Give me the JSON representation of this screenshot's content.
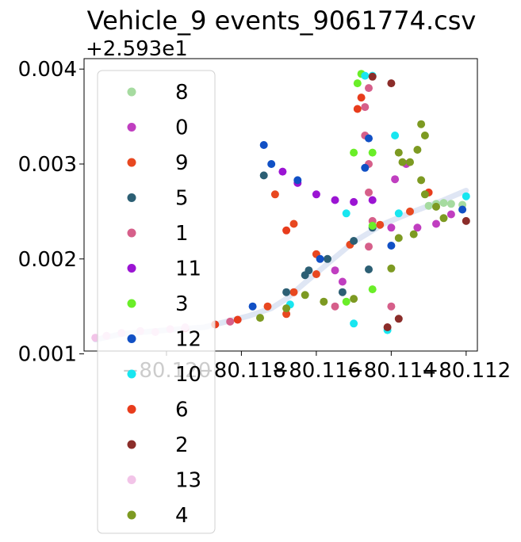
{
  "chart_data": {
    "type": "scatter",
    "title": "Vehicle_9 events_9061774.csv",
    "xlabel": "",
    "ylabel": "",
    "y_offset_text": "+2.593e1",
    "xlim": [
      -80.1222,
      -80.1117
    ],
    "ylim": [
      0.00103,
      0.00411
    ],
    "x_ticks": [
      -80.12,
      -80.118,
      -80.116,
      -80.114,
      -80.112
    ],
    "x_tick_labels": [
      "−80.120",
      "−80.118",
      "−80.116",
      "−80.114",
      "−80.112"
    ],
    "y_ticks": [
      0.001,
      0.002,
      0.003,
      0.004
    ],
    "y_tick_labels": [
      "0.001",
      "0.002",
      "0.003",
      "0.004"
    ],
    "grid": false,
    "legend_position": "upper-left",
    "track": [
      [
        -80.1219,
        0.00115
      ],
      [
        -80.1212,
        0.00121
      ],
      [
        -80.12,
        0.00125
      ],
      [
        -80.119,
        0.00128
      ],
      [
        -80.1183,
        0.00135
      ],
      [
        -80.1178,
        0.0014
      ],
      [
        -80.1172,
        0.00148
      ],
      [
        -80.1168,
        0.00158
      ],
      [
        -80.1163,
        0.00175
      ],
      [
        -80.1157,
        0.00195
      ],
      [
        -80.115,
        0.00218
      ],
      [
        -80.1142,
        0.00237
      ],
      [
        -80.1134,
        0.0025
      ],
      [
        -80.1126,
        0.00262
      ],
      [
        -80.112,
        0.00272
      ]
    ],
    "series": [
      {
        "name": "8",
        "color": "#a6dba0",
        "points": [
          [
            -80.1128,
            0.00258
          ],
          [
            -80.1124,
            0.00258
          ],
          [
            -80.1121,
            0.00257
          ],
          [
            -80.1126,
            0.00259
          ],
          [
            -80.113,
            0.00256
          ]
        ]
      },
      {
        "name": "0",
        "color": "#c03ec0",
        "points": [
          [
            -80.1133,
            0.00233
          ],
          [
            -80.1128,
            0.00237
          ],
          [
            -80.1124,
            0.00247
          ],
          [
            -80.1139,
            0.00284
          ],
          [
            -80.1136,
            0.003
          ],
          [
            -80.1155,
            0.00188
          ],
          [
            -80.1153,
            0.00176
          ],
          [
            -80.114,
            0.00233
          ]
        ]
      },
      {
        "name": "9",
        "color": "#e84820",
        "points": [
          [
            -80.1173,
            0.0015
          ],
          [
            -80.1166,
            0.00165
          ],
          [
            -80.116,
            0.00184
          ],
          [
            -80.1151,
            0.00215
          ],
          [
            -80.1143,
            0.00236
          ],
          [
            -80.1135,
            0.0025
          ],
          [
            -80.1171,
            0.00268
          ],
          [
            -80.1166,
            0.00237
          ],
          [
            -80.116,
            0.00205
          ],
          [
            -80.1168,
            0.00142
          ]
        ]
      },
      {
        "name": "5",
        "color": "#2c5f74",
        "points": [
          [
            -80.1168,
            0.00165
          ],
          [
            -80.1163,
            0.00183
          ],
          [
            -80.1157,
            0.002
          ],
          [
            -80.115,
            0.00219
          ],
          [
            -80.1145,
            0.00233
          ],
          [
            -80.1174,
            0.00288
          ],
          [
            -80.1162,
            0.00188
          ],
          [
            -80.1153,
            0.00165
          ],
          [
            -80.1146,
            0.00189
          ]
        ]
      },
      {
        "name": "1",
        "color": "#d65f8a",
        "points": [
          [
            -80.1146,
            0.0038
          ],
          [
            -80.1147,
            0.0036
          ],
          [
            -80.1147,
            0.0033
          ],
          [
            -80.1146,
            0.003
          ],
          [
            -80.1146,
            0.0027
          ],
          [
            -80.1145,
            0.0024
          ],
          [
            -80.1146,
            0.00213
          ],
          [
            -80.114,
            0.0015
          ],
          [
            -80.1155,
            0.0015
          ],
          [
            -80.1183,
            0.00134
          ],
          [
            -80.1195,
            0.00127
          ]
        ]
      },
      {
        "name": "11",
        "color": "#9b14d3",
        "points": [
          [
            -80.1169,
            0.00292
          ],
          [
            -80.1165,
            0.0028
          ],
          [
            -80.116,
            0.00268
          ],
          [
            -80.1155,
            0.00262
          ],
          [
            -80.115,
            0.0026
          ],
          [
            -80.1145,
            0.00262
          ]
        ]
      },
      {
        "name": "3",
        "color": "#6aee28",
        "points": [
          [
            -80.1145,
            0.00312
          ],
          [
            -80.115,
            0.00312
          ],
          [
            -80.1148,
            0.00395
          ],
          [
            -80.1149,
            0.00385
          ],
          [
            -80.1145,
            0.00235
          ],
          [
            -80.1145,
            0.00168
          ],
          [
            -80.1152,
            0.00155
          ]
        ]
      },
      {
        "name": "12",
        "color": "#1150c5",
        "points": [
          [
            -80.1174,
            0.0032
          ],
          [
            -80.1172,
            0.003
          ],
          [
            -80.1165,
            0.00283
          ],
          [
            -80.1159,
            0.002
          ],
          [
            -80.1147,
            0.00296
          ],
          [
            -80.1146,
            0.00327
          ],
          [
            -80.114,
            0.00214
          ],
          [
            -80.1177,
            0.0015
          ],
          [
            -80.1121,
            0.00252
          ]
        ]
      },
      {
        "name": "10",
        "color": "#18e6f0",
        "points": [
          [
            -80.1147,
            0.00393
          ],
          [
            -80.1145,
            0.00393
          ],
          [
            -80.1139,
            0.0033
          ],
          [
            -80.1152,
            0.00248
          ],
          [
            -80.1138,
            0.00248
          ],
          [
            -80.112,
            0.00266
          ],
          [
            -80.1167,
            0.00152
          ],
          [
            -80.1141,
            0.00125
          ],
          [
            -80.115,
            0.00132
          ]
        ]
      },
      {
        "name": "6",
        "color": "#e83c1c",
        "points": [
          [
            -80.1148,
            0.0037
          ],
          [
            -80.1149,
            0.00358
          ],
          [
            -80.1181,
            0.00136
          ],
          [
            -80.1187,
            0.00131
          ],
          [
            -80.1168,
            0.0023
          ],
          [
            -80.113,
            0.0027
          ]
        ]
      },
      {
        "name": "2",
        "color": "#8b2d2a",
        "points": [
          [
            -80.1145,
            0.00392
          ],
          [
            -80.114,
            0.00385
          ],
          [
            -80.112,
            0.0024
          ],
          [
            -80.1138,
            0.00137
          ],
          [
            -80.1141,
            0.00128
          ]
        ]
      },
      {
        "name": "13",
        "color": "#f2c4e8",
        "points": [
          [
            -80.1219,
            0.00117
          ],
          [
            -80.1216,
            0.00119
          ],
          [
            -80.1212,
            0.00122
          ],
          [
            -80.1207,
            0.00124
          ],
          [
            -80.1203,
            0.00123
          ],
          [
            -80.1199,
            0.00126
          ],
          [
            -80.1195,
            0.00128
          ]
        ]
      },
      {
        "name": "4",
        "color": "#7d9a22",
        "points": [
          [
            -80.1132,
            0.00342
          ],
          [
            -80.1131,
            0.0033
          ],
          [
            -80.1133,
            0.00315
          ],
          [
            -80.1135,
            0.00302
          ],
          [
            -80.1132,
            0.00283
          ],
          [
            -80.1131,
            0.00268
          ],
          [
            -80.1128,
            0.00255
          ],
          [
            -80.1134,
            0.00226
          ],
          [
            -80.1138,
            0.00222
          ],
          [
            -80.1126,
            0.00243
          ],
          [
            -80.114,
            0.0019
          ],
          [
            -80.1158,
            0.00155
          ],
          [
            -80.1163,
            0.00162
          ],
          [
            -80.1168,
            0.00148
          ],
          [
            -80.1175,
            0.00138
          ],
          [
            -80.1138,
            0.00312
          ],
          [
            -80.1137,
            0.00302
          ],
          [
            -80.115,
            0.00158
          ]
        ]
      }
    ]
  }
}
